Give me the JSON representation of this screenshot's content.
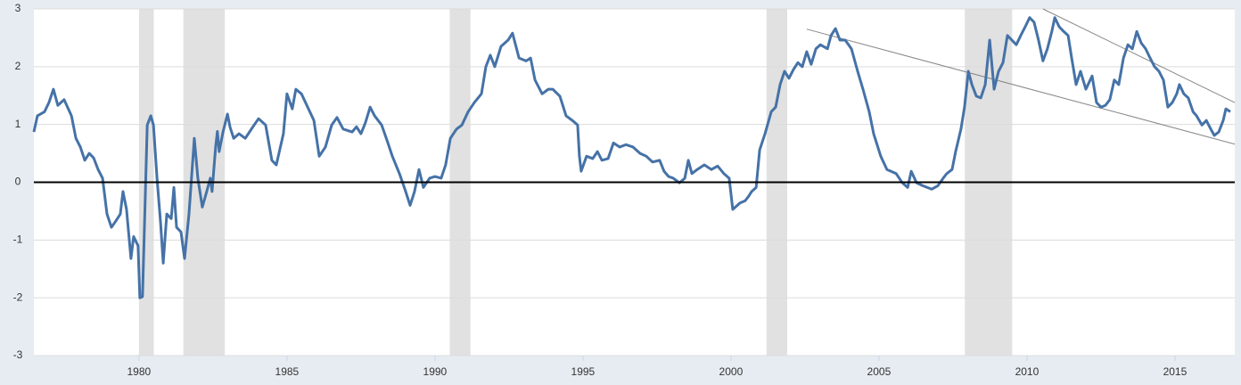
{
  "chart_data": {
    "type": "line",
    "xlim": [
      1976.45,
      2017.02
    ],
    "xticks": [
      1980,
      1985,
      1990,
      1995,
      2000,
      2005,
      2010,
      2015
    ],
    "ylim": [
      -3,
      3
    ],
    "yticks": [
      -3,
      -2,
      -1,
      0,
      1,
      2,
      3
    ],
    "grid": true,
    "recessions": [
      [
        1980.0,
        1980.5
      ],
      [
        1981.5,
        1982.9
      ],
      [
        1990.5,
        1991.2
      ],
      [
        2001.2,
        2001.9
      ],
      [
        2007.9,
        2009.5
      ]
    ],
    "recession_color": "#e1e1e1",
    "trend_lines": [
      {
        "x": [
          2002.56,
          2017.02
        ],
        "y": [
          2.65,
          0.66
        ]
      },
      {
        "x": [
          2010.54,
          2017.02
        ],
        "y": [
          3.0,
          1.38
        ]
      }
    ],
    "trend_color": "#888888",
    "series": [
      {
        "color": "#4572a7",
        "x": [
          1976.45,
          1976.57,
          1976.81,
          1976.96,
          1977.11,
          1977.26,
          1977.47,
          1977.72,
          1977.87,
          1978.02,
          1978.17,
          1978.32,
          1978.47,
          1978.62,
          1978.77,
          1978.92,
          1979.07,
          1979.22,
          1979.37,
          1979.46,
          1979.58,
          1979.73,
          1979.82,
          1979.97,
          1980.03,
          1980.12,
          1980.28,
          1980.4,
          1980.49,
          1980.61,
          1980.73,
          1980.82,
          1980.94,
          1981.09,
          1981.18,
          1981.27,
          1981.42,
          1981.54,
          1981.69,
          1981.87,
          1981.99,
          1982.14,
          1982.29,
          1982.41,
          1982.47,
          1982.59,
          1982.65,
          1982.71,
          1982.84,
          1982.99,
          1983.08,
          1983.2,
          1983.38,
          1983.59,
          1983.89,
          1984.04,
          1984.28,
          1984.49,
          1984.64,
          1984.88,
          1985.0,
          1985.18,
          1985.3,
          1985.49,
          1985.7,
          1985.91,
          1986.09,
          1986.3,
          1986.51,
          1986.69,
          1986.9,
          1987.2,
          1987.35,
          1987.5,
          1987.65,
          1987.81,
          1987.96,
          1988.2,
          1988.41,
          1988.56,
          1988.8,
          1989.01,
          1989.16,
          1989.31,
          1989.46,
          1989.61,
          1989.82,
          1990.0,
          1990.21,
          1990.36,
          1990.52,
          1990.73,
          1990.91,
          1991.12,
          1991.33,
          1991.57,
          1991.72,
          1991.87,
          1992.02,
          1992.23,
          1992.47,
          1992.62,
          1992.84,
          1993.08,
          1993.23,
          1993.38,
          1993.62,
          1993.83,
          1993.98,
          1994.22,
          1994.43,
          1994.64,
          1994.82,
          1994.88,
          1994.94,
          1995.12,
          1995.33,
          1995.49,
          1995.64,
          1995.85,
          1996.03,
          1996.24,
          1996.45,
          1996.69,
          1996.93,
          1997.14,
          1997.35,
          1997.59,
          1997.74,
          1997.89,
          1998.05,
          1998.26,
          1998.44,
          1998.56,
          1998.68,
          1998.86,
          1999.1,
          1999.34,
          1999.55,
          1999.76,
          1999.94,
          2000.06,
          2000.3,
          2000.48,
          2000.6,
          2000.7,
          2000.85,
          2000.97,
          2001.15,
          2001.36,
          2001.51,
          2001.66,
          2001.81,
          2001.96,
          2002.11,
          2002.26,
          2002.41,
          2002.56,
          2002.71,
          2002.87,
          2003.02,
          2003.26,
          2003.38,
          2003.53,
          2003.68,
          2003.86,
          2004.07,
          2004.28,
          2004.46,
          2004.67,
          2004.82,
          2005.06,
          2005.27,
          2005.58,
          2005.79,
          2005.97,
          2006.09,
          2006.27,
          2006.48,
          2006.78,
          2006.99,
          2007.17,
          2007.29,
          2007.47,
          2007.59,
          2007.77,
          2007.89,
          2008.02,
          2008.14,
          2008.29,
          2008.44,
          2008.59,
          2008.74,
          2008.89,
          2009.04,
          2009.19,
          2009.34,
          2009.49,
          2009.64,
          2009.79,
          2009.94,
          2010.09,
          2010.24,
          2010.39,
          2010.54,
          2010.69,
          2010.84,
          2010.94,
          2011.09,
          2011.24,
          2011.39,
          2011.51,
          2011.66,
          2011.81,
          2011.99,
          2012.2,
          2012.35,
          2012.5,
          2012.65,
          2012.8,
          2012.95,
          2013.1,
          2013.26,
          2013.41,
          2013.56,
          2013.71,
          2013.86,
          2014.01,
          2014.16,
          2014.31,
          2014.46,
          2014.61,
          2014.76,
          2014.91,
          2015.06,
          2015.15,
          2015.3,
          2015.45,
          2015.61,
          2015.73,
          2015.91,
          2016.06,
          2016.21,
          2016.33,
          2016.48,
          2016.63,
          2016.72,
          2016.87
        ],
        "values": [
          0.87,
          1.15,
          1.22,
          1.38,
          1.61,
          1.33,
          1.43,
          1.15,
          0.76,
          0.61,
          0.38,
          0.5,
          0.42,
          0.22,
          0.07,
          -0.55,
          -0.78,
          -0.67,
          -0.55,
          -0.16,
          -0.47,
          -1.32,
          -0.94,
          -1.1,
          -2.0,
          -1.98,
          0.99,
          1.15,
          0.99,
          0.07,
          -0.7,
          -1.4,
          -0.55,
          -0.63,
          -0.09,
          -0.78,
          -0.86,
          -1.32,
          -0.55,
          0.76,
          0.07,
          -0.43,
          -0.16,
          0.07,
          -0.16,
          0.61,
          0.88,
          0.53,
          0.87,
          1.18,
          0.95,
          0.76,
          0.84,
          0.76,
          0.99,
          1.1,
          0.99,
          0.38,
          0.3,
          0.84,
          1.53,
          1.27,
          1.61,
          1.53,
          1.3,
          1.07,
          0.45,
          0.61,
          0.99,
          1.12,
          0.92,
          0.87,
          0.96,
          0.84,
          1.03,
          1.3,
          1.15,
          0.99,
          0.68,
          0.45,
          0.15,
          -0.16,
          -0.4,
          -0.16,
          0.22,
          -0.09,
          0.07,
          0.1,
          0.07,
          0.3,
          0.76,
          0.92,
          0.99,
          1.22,
          1.38,
          1.53,
          2.0,
          2.2,
          2.0,
          2.35,
          2.46,
          2.58,
          2.15,
          2.1,
          2.15,
          1.77,
          1.53,
          1.61,
          1.61,
          1.49,
          1.15,
          1.07,
          0.99,
          0.45,
          0.19,
          0.45,
          0.41,
          0.53,
          0.38,
          0.41,
          0.68,
          0.61,
          0.65,
          0.61,
          0.5,
          0.45,
          0.35,
          0.38,
          0.19,
          0.1,
          0.07,
          -0.01,
          0.07,
          0.38,
          0.15,
          0.22,
          0.3,
          0.22,
          0.28,
          0.15,
          0.07,
          -0.47,
          -0.36,
          -0.32,
          -0.24,
          -0.16,
          -0.09,
          0.56,
          0.84,
          1.22,
          1.3,
          1.69,
          1.92,
          1.8,
          1.95,
          2.07,
          2.0,
          2.26,
          2.04,
          2.31,
          2.38,
          2.31,
          2.54,
          2.66,
          2.46,
          2.46,
          2.31,
          1.92,
          1.61,
          1.22,
          0.84,
          0.45,
          0.22,
          0.15,
          -0.01,
          -0.09,
          0.19,
          -0.01,
          -0.06,
          -0.12,
          -0.06,
          0.07,
          0.15,
          0.22,
          0.53,
          0.92,
          1.3,
          1.92,
          1.69,
          1.49,
          1.46,
          1.69,
          2.46,
          1.61,
          1.92,
          2.07,
          2.54,
          2.46,
          2.38,
          2.54,
          2.69,
          2.85,
          2.77,
          2.46,
          2.1,
          2.31,
          2.61,
          2.85,
          2.69,
          2.61,
          2.54,
          2.15,
          1.69,
          1.92,
          1.61,
          1.84,
          1.38,
          1.3,
          1.33,
          1.43,
          1.77,
          1.69,
          2.15,
          2.38,
          2.31,
          2.61,
          2.41,
          2.31,
          2.15,
          2.0,
          1.92,
          1.77,
          1.3,
          1.38,
          1.53,
          1.69,
          1.53,
          1.46,
          1.22,
          1.15,
          0.99,
          1.07,
          0.92,
          0.81,
          0.87,
          1.07,
          1.27,
          1.22
        ]
      }
    ]
  }
}
